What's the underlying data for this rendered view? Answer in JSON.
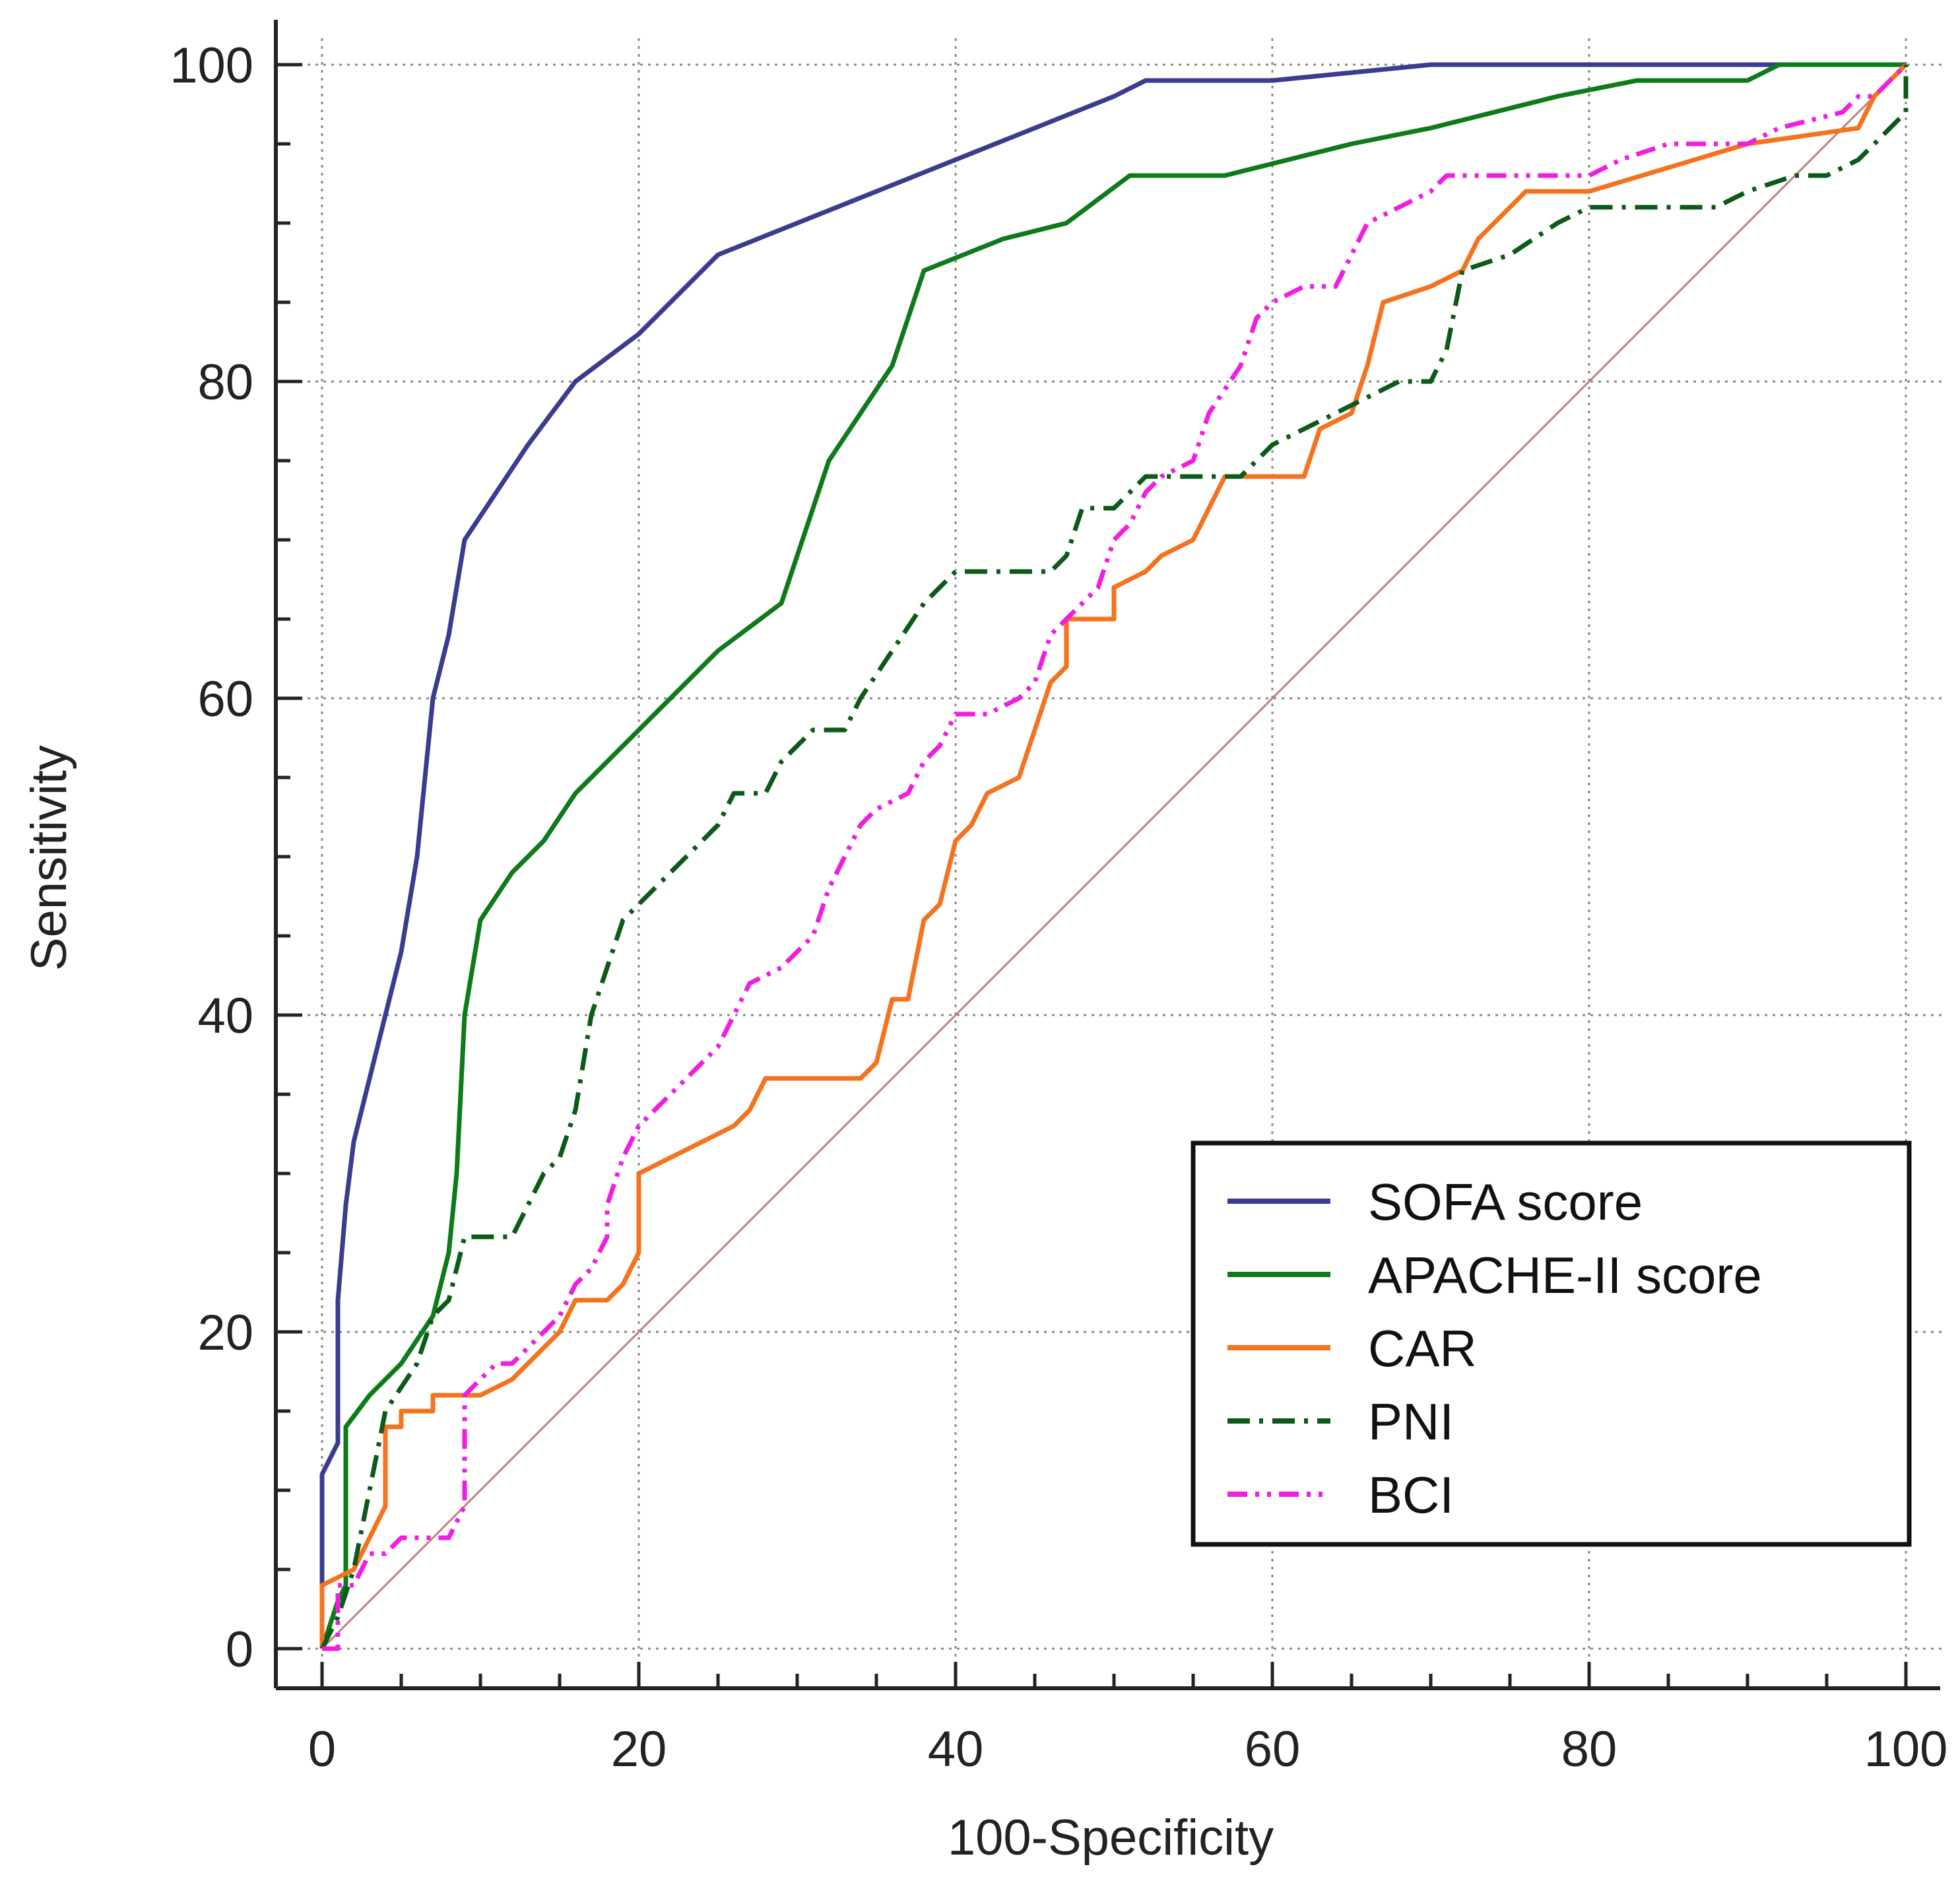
{
  "chart_data": {
    "type": "line",
    "title": "",
    "xlabel": "100-Specificity",
    "ylabel": "Sensitivity",
    "xlim": [
      0,
      100
    ],
    "ylim": [
      0,
      100
    ],
    "x_ticks": [
      "0",
      "20",
      "40",
      "60",
      "80",
      "100"
    ],
    "y_ticks": [
      "0",
      "20",
      "40",
      "60",
      "80",
      "100"
    ],
    "grid": true,
    "legend_position": "bottom-right",
    "reference_line": {
      "style": "diagonal",
      "color": "#c08080",
      "points": [
        [
          0,
          0
        ],
        [
          100,
          100
        ]
      ]
    },
    "series": [
      {
        "name": "SOFA score",
        "color": "#3b3b8f",
        "dash": "solid",
        "points": [
          [
            0,
            0
          ],
          [
            0,
            11
          ],
          [
            1,
            13
          ],
          [
            1,
            22
          ],
          [
            1.5,
            28
          ],
          [
            2,
            32
          ],
          [
            3,
            36
          ],
          [
            4,
            40
          ],
          [
            5,
            44
          ],
          [
            6,
            50
          ],
          [
            7,
            60
          ],
          [
            8,
            64
          ],
          [
            9,
            70
          ],
          [
            11,
            73
          ],
          [
            13,
            76
          ],
          [
            16,
            80
          ],
          [
            20,
            83
          ],
          [
            25,
            88
          ],
          [
            30,
            90
          ],
          [
            35,
            92
          ],
          [
            40,
            94
          ],
          [
            45,
            96
          ],
          [
            50,
            98
          ],
          [
            52,
            99
          ],
          [
            60,
            99
          ],
          [
            70,
            100
          ],
          [
            100,
            100
          ]
        ]
      },
      {
        "name": "APACHE-II score",
        "color": "#0e7a1a",
        "dash": "solid",
        "points": [
          [
            0,
            0
          ],
          [
            1,
            3
          ],
          [
            1.5,
            4
          ],
          [
            1.5,
            14
          ],
          [
            3,
            16
          ],
          [
            5,
            18
          ],
          [
            7,
            21
          ],
          [
            8,
            25
          ],
          [
            8.5,
            30
          ],
          [
            9,
            40
          ],
          [
            10,
            46
          ],
          [
            12,
            49
          ],
          [
            14,
            51
          ],
          [
            16,
            54
          ],
          [
            20,
            58
          ],
          [
            25,
            63
          ],
          [
            29,
            66
          ],
          [
            32,
            75
          ],
          [
            36,
            81
          ],
          [
            38,
            87
          ],
          [
            43,
            89
          ],
          [
            47,
            90
          ],
          [
            51,
            93
          ],
          [
            57,
            93
          ],
          [
            61,
            94
          ],
          [
            65,
            95
          ],
          [
            70,
            96
          ],
          [
            74,
            97
          ],
          [
            78,
            98
          ],
          [
            83,
            99
          ],
          [
            90,
            99
          ],
          [
            92,
            100
          ],
          [
            100,
            100
          ]
        ]
      },
      {
        "name": "CAR",
        "color": "#f5721e",
        "dash": "solid",
        "points": [
          [
            0,
            0
          ],
          [
            0,
            4
          ],
          [
            2,
            5
          ],
          [
            3,
            7
          ],
          [
            4,
            9
          ],
          [
            4,
            14
          ],
          [
            5,
            14
          ],
          [
            5,
            15
          ],
          [
            7,
            15
          ],
          [
            7,
            16
          ],
          [
            10,
            16
          ],
          [
            12,
            17
          ],
          [
            13,
            18
          ],
          [
            14,
            19
          ],
          [
            15,
            20
          ],
          [
            16,
            22
          ],
          [
            17,
            22
          ],
          [
            18,
            22
          ],
          [
            19,
            23
          ],
          [
            20,
            25
          ],
          [
            20,
            30
          ],
          [
            22,
            31
          ],
          [
            24,
            32
          ],
          [
            26,
            33
          ],
          [
            27,
            34
          ],
          [
            28,
            36
          ],
          [
            34,
            36
          ],
          [
            35,
            37
          ],
          [
            36,
            41
          ],
          [
            37,
            41
          ],
          [
            38,
            46
          ],
          [
            39,
            47
          ],
          [
            40,
            51
          ],
          [
            41,
            52
          ],
          [
            42,
            54
          ],
          [
            44,
            55
          ],
          [
            45,
            58
          ],
          [
            46,
            61
          ],
          [
            47,
            62
          ],
          [
            47,
            65
          ],
          [
            50,
            65
          ],
          [
            50,
            67
          ],
          [
            52,
            68
          ],
          [
            53,
            69
          ],
          [
            55,
            70
          ],
          [
            56,
            72
          ],
          [
            57,
            74
          ],
          [
            60,
            74
          ],
          [
            62,
            74
          ],
          [
            63,
            77
          ],
          [
            65,
            78
          ],
          [
            66,
            81
          ],
          [
            67,
            85
          ],
          [
            70,
            86
          ],
          [
            72,
            87
          ],
          [
            73,
            89
          ],
          [
            75,
            91
          ],
          [
            76,
            92
          ],
          [
            80,
            92
          ],
          [
            90,
            95
          ],
          [
            97,
            96
          ],
          [
            98,
            98
          ],
          [
            100,
            100
          ]
        ]
      },
      {
        "name": "PNI",
        "color": "#0b5a18",
        "dash": "dashdot",
        "points": [
          [
            0,
            0
          ],
          [
            1,
            2
          ],
          [
            2,
            5
          ],
          [
            3,
            10
          ],
          [
            4,
            15
          ],
          [
            6,
            18
          ],
          [
            7,
            21
          ],
          [
            8,
            22
          ],
          [
            9,
            26
          ],
          [
            12,
            26
          ],
          [
            13,
            28
          ],
          [
            14,
            30
          ],
          [
            15,
            31
          ],
          [
            16,
            34
          ],
          [
            17,
            40
          ],
          [
            18,
            43
          ],
          [
            19,
            46
          ],
          [
            20,
            47
          ],
          [
            22,
            49
          ],
          [
            24,
            51
          ],
          [
            25,
            52
          ],
          [
            26,
            54
          ],
          [
            28,
            54
          ],
          [
            29,
            56
          ],
          [
            30,
            57
          ],
          [
            31,
            58
          ],
          [
            33,
            58
          ],
          [
            34,
            60
          ],
          [
            36,
            63
          ],
          [
            38,
            66
          ],
          [
            40,
            68
          ],
          [
            46,
            68
          ],
          [
            47,
            69
          ],
          [
            48,
            72
          ],
          [
            50,
            72
          ],
          [
            51,
            73
          ],
          [
            52,
            74
          ],
          [
            58,
            74
          ],
          [
            60,
            76
          ],
          [
            62,
            77
          ],
          [
            64,
            78
          ],
          [
            66,
            79
          ],
          [
            68,
            80
          ],
          [
            70,
            80
          ],
          [
            71,
            82
          ],
          [
            72,
            87
          ],
          [
            75,
            88
          ],
          [
            78,
            90
          ],
          [
            80,
            91
          ],
          [
            88,
            91
          ],
          [
            90,
            92
          ],
          [
            93,
            93
          ],
          [
            95,
            93
          ],
          [
            97,
            94
          ],
          [
            98,
            95
          ],
          [
            100,
            97
          ],
          [
            100,
            100
          ]
        ]
      },
      {
        "name": "BCI",
        "color": "#f01ee0",
        "dash": "dashdotdot",
        "points": [
          [
            0,
            0
          ],
          [
            1,
            0
          ],
          [
            1,
            4
          ],
          [
            2,
            4
          ],
          [
            3,
            6
          ],
          [
            4,
            6
          ],
          [
            5,
            7
          ],
          [
            8,
            7
          ],
          [
            9,
            9
          ],
          [
            9,
            16
          ],
          [
            10,
            17
          ],
          [
            11,
            18
          ],
          [
            12,
            18
          ],
          [
            13,
            19
          ],
          [
            14,
            20
          ],
          [
            15,
            21
          ],
          [
            16,
            23
          ],
          [
            17,
            24
          ],
          [
            18,
            26
          ],
          [
            18,
            28
          ],
          [
            19,
            31
          ],
          [
            20,
            33
          ],
          [
            22,
            35
          ],
          [
            24,
            37
          ],
          [
            25,
            38
          ],
          [
            26,
            40
          ],
          [
            27,
            42
          ],
          [
            29,
            43
          ],
          [
            30,
            44
          ],
          [
            31,
            45
          ],
          [
            32,
            48
          ],
          [
            33,
            50
          ],
          [
            34,
            52
          ],
          [
            35,
            53
          ],
          [
            37,
            54
          ],
          [
            38,
            56
          ],
          [
            39,
            57
          ],
          [
            40,
            59
          ],
          [
            42,
            59
          ],
          [
            44,
            60
          ],
          [
            45,
            61
          ],
          [
            46,
            64
          ],
          [
            47,
            65
          ],
          [
            48,
            66
          ],
          [
            49,
            67
          ],
          [
            50,
            70
          ],
          [
            51,
            71
          ],
          [
            52,
            73
          ],
          [
            53,
            74
          ],
          [
            55,
            75
          ],
          [
            56,
            78
          ],
          [
            58,
            81
          ],
          [
            59,
            84
          ],
          [
            60,
            85
          ],
          [
            62,
            86
          ],
          [
            64,
            86
          ],
          [
            65,
            88
          ],
          [
            66,
            90
          ],
          [
            68,
            91
          ],
          [
            70,
            92
          ],
          [
            71,
            93
          ],
          [
            73,
            93
          ],
          [
            80,
            93
          ],
          [
            82,
            94
          ],
          [
            85,
            95
          ],
          [
            90,
            95
          ],
          [
            92,
            96
          ],
          [
            96,
            97
          ],
          [
            97,
            98
          ],
          [
            98,
            98
          ],
          [
            100,
            100
          ]
        ]
      }
    ]
  }
}
